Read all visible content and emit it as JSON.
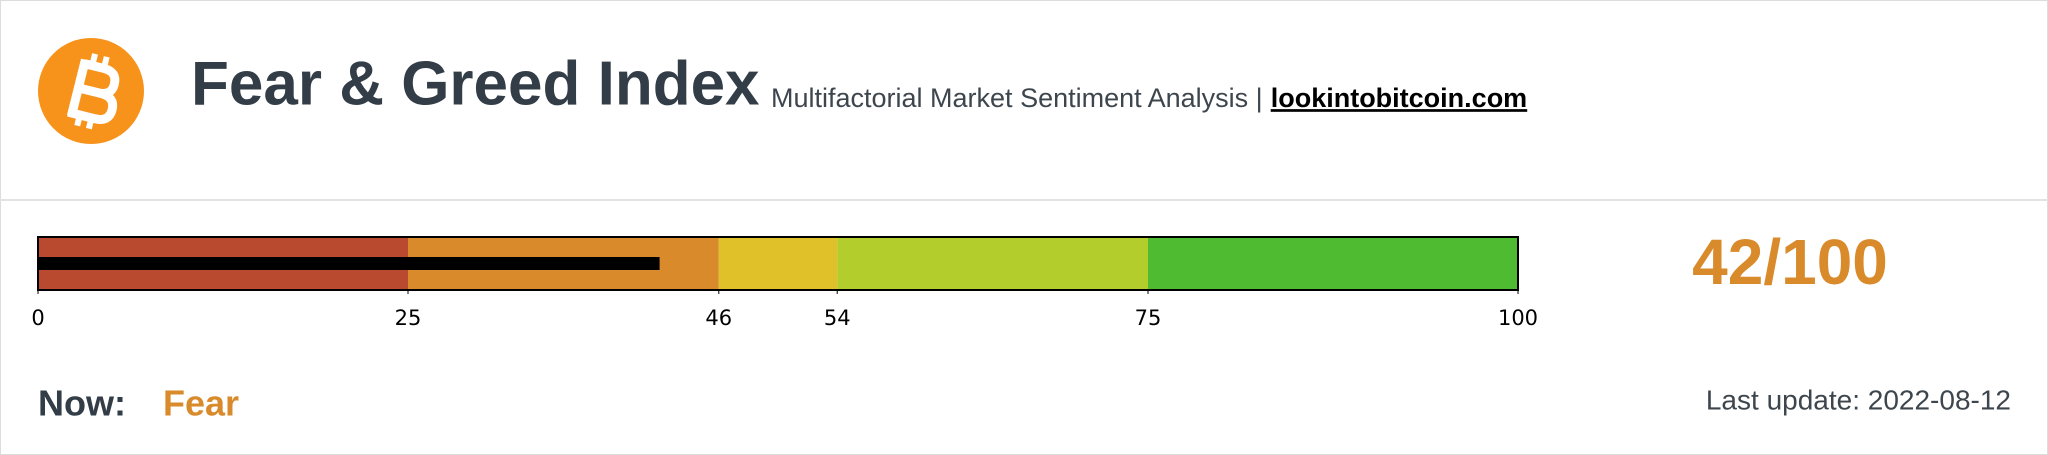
{
  "header": {
    "title": "Fear & Greed Index",
    "subtitle": "Multifactorial Market Sentiment Analysis |",
    "link": "lookintobitcoin.com"
  },
  "chart_data": {
    "type": "bullet",
    "value": 42,
    "value_label": "42/100",
    "value_color": "#d98a2a",
    "bar_color": "#000000",
    "xlim": [
      0,
      100
    ],
    "xticks": [
      0,
      25,
      46,
      54,
      75,
      100
    ],
    "bands": [
      {
        "from": 0,
        "to": 25,
        "color": "#b94a2f"
      },
      {
        "from": 25,
        "to": 46,
        "color": "#d98a2a"
      },
      {
        "from": 46,
        "to": 54,
        "color": "#e0c12a"
      },
      {
        "from": 54,
        "to": 75,
        "color": "#b2cd2c"
      },
      {
        "from": 75,
        "to": 100,
        "color": "#4fbb30"
      }
    ]
  },
  "status": {
    "label": "Now:",
    "value": "Fear"
  },
  "last_update": "Last update: 2022-08-12"
}
